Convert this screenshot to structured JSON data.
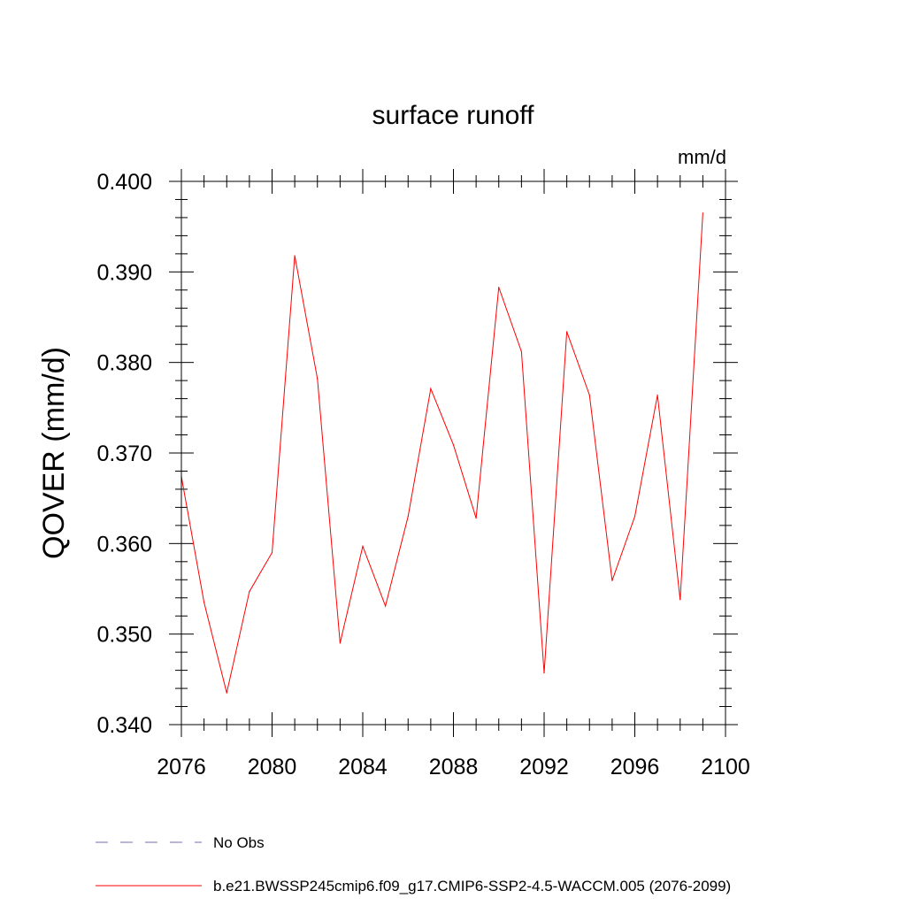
{
  "chart_data": {
    "type": "line",
    "title": "surface runoff",
    "units_label": "mm/d",
    "ylabel": "QOVER  (mm/d)",
    "xlim": [
      2076,
      2100
    ],
    "ylim": [
      0.34,
      0.4
    ],
    "xticks": [
      2076,
      2080,
      2084,
      2088,
      2092,
      2096,
      2100
    ],
    "yticks": [
      "0.340",
      "0.350",
      "0.360",
      "0.370",
      "0.380",
      "0.390",
      "0.400"
    ],
    "yticks_values": [
      0.34,
      0.35,
      0.36,
      0.37,
      0.38,
      0.39,
      0.4
    ],
    "series": [
      {
        "name": "b.e21.BWSSP245cmip6.f09_g17.CMIP6-SSP2-4.5-WACCM.005 (2076-2099)",
        "color": "#ff0000",
        "x": [
          2076,
          2077,
          2078,
          2079,
          2080,
          2081,
          2082,
          2083,
          2084,
          2085,
          2086,
          2087,
          2088,
          2089,
          2090,
          2091,
          2092,
          2093,
          2094,
          2095,
          2096,
          2097,
          2098,
          2099
        ],
        "y": [
          0.3674,
          0.3535,
          0.3435,
          0.3547,
          0.359,
          0.3918,
          0.3782,
          0.349,
          0.3597,
          0.3531,
          0.363,
          0.3771,
          0.3709,
          0.3628,
          0.3883,
          0.3812,
          0.3457,
          0.3834,
          0.3764,
          0.3559,
          0.363,
          0.3764,
          0.3538,
          0.3965
        ]
      }
    ],
    "legend": [
      {
        "label": "No Obs",
        "color": "#7b68b0",
        "style": "dashed"
      },
      {
        "label": "b.e21.BWSSP245cmip6.f09_g17.CMIP6-SSP2-4.5-WACCM.005 (2076-2099)",
        "color": "#ff0000",
        "style": "solid"
      }
    ],
    "legend_placement": "bottom"
  }
}
